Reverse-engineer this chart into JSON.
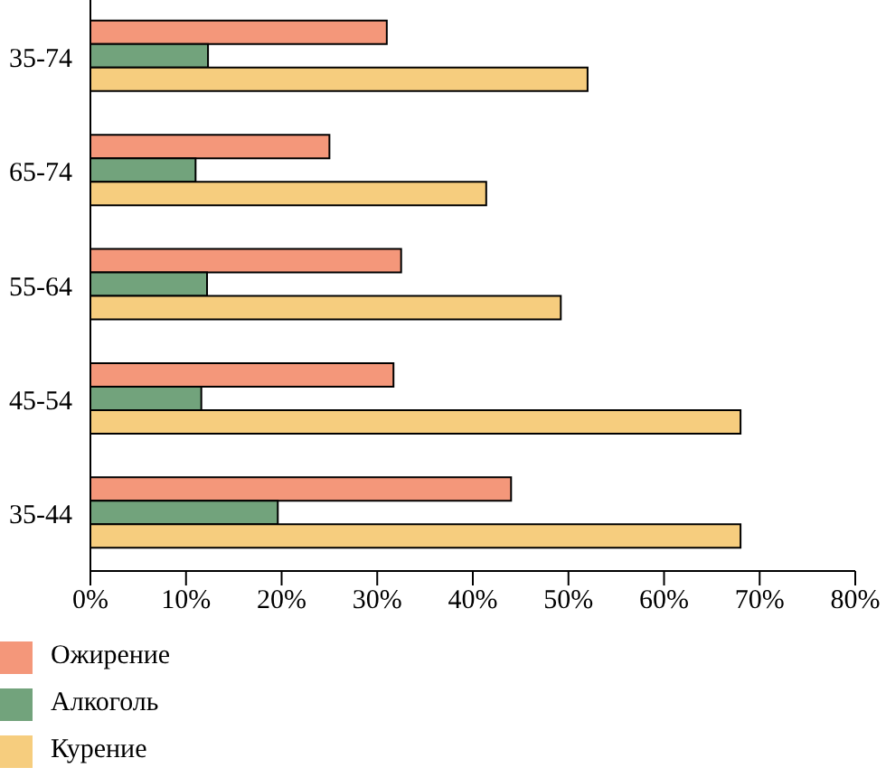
{
  "chart_data": {
    "type": "bar",
    "orientation": "horizontal",
    "categories": [
      "35-74",
      "65-74",
      "55-64",
      "45-54",
      "35-44"
    ],
    "series": [
      {
        "name": "Ожирение",
        "color": "#f4977a",
        "values": [
          31,
          25,
          32.5,
          31.7,
          44
        ]
      },
      {
        "name": "Алкоголь",
        "color": "#72a37c",
        "values": [
          12.3,
          11,
          12.2,
          11.6,
          19.6
        ]
      },
      {
        "name": "Курение",
        "color": "#f6cd7e",
        "values": [
          52,
          41.4,
          49.2,
          68,
          68
        ]
      }
    ],
    "xlim": [
      0,
      80
    ],
    "xticks": [
      {
        "value": 0,
        "label": "0%"
      },
      {
        "value": 10,
        "label": "10%"
      },
      {
        "value": 20,
        "label": "20%"
      },
      {
        "value": 30,
        "label": "30%"
      },
      {
        "value": 40,
        "label": "40%"
      },
      {
        "value": 50,
        "label": "50%"
      },
      {
        "value": 60,
        "label": "60%"
      },
      {
        "value": 70,
        "label": "70%"
      },
      {
        "value": 80,
        "label": "80%"
      }
    ],
    "grid": false,
    "legend": "bottom left"
  }
}
